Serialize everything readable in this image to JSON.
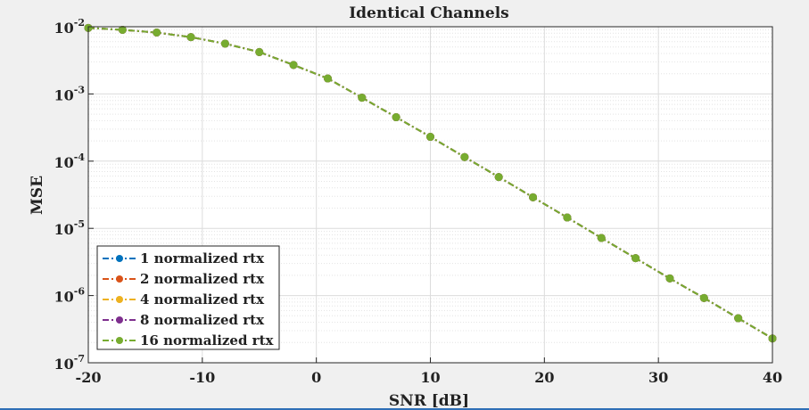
{
  "chart_data": {
    "type": "line",
    "title": "Identical Channels",
    "xlabel": "SNR [dB]",
    "ylabel": "MSE",
    "xlim": [
      -20,
      40
    ],
    "ylim": [
      1e-07,
      0.01
    ],
    "yscale": "log",
    "grid": true,
    "minor_grid": true,
    "legend_position": "bottom-left",
    "x_ticks": [
      -20,
      -10,
      0,
      10,
      20,
      30,
      40
    ],
    "x_tick_labels": [
      "-20",
      "-10",
      "0",
      "10",
      "20",
      "30",
      "40"
    ],
    "y_ticks": [
      {
        "value": 0.01,
        "base": "10",
        "exp": "-2"
      },
      {
        "value": 0.001,
        "base": "10",
        "exp": "-3"
      },
      {
        "value": 0.0001,
        "base": "10",
        "exp": "-4"
      },
      {
        "value": 1e-05,
        "base": "10",
        "exp": "-5"
      },
      {
        "value": 1e-06,
        "base": "10",
        "exp": "-6"
      },
      {
        "value": 1e-07,
        "base": "10",
        "exp": "-7"
      }
    ],
    "x": [
      -20,
      -17,
      -14,
      -11,
      -8,
      -5,
      -2,
      1,
      4,
      7,
      10,
      13,
      16,
      19,
      22,
      25,
      28,
      31,
      34,
      37,
      40
    ],
    "series": [
      {
        "name": "1 normalized rtx",
        "color": "#0072BD",
        "values": [
          0.0096,
          0.009,
          0.0082,
          0.007,
          0.0056,
          0.0042,
          0.0027,
          0.0017,
          0.00088,
          0.00045,
          0.00023,
          0.000115,
          5.8e-05,
          2.9e-05,
          1.45e-05,
          7.2e-06,
          3.6e-06,
          1.8e-06,
          9.2e-07,
          4.6e-07,
          2.3e-07
        ]
      },
      {
        "name": "2 normalized rtx",
        "color": "#D95319",
        "values": [
          0.0096,
          0.009,
          0.0082,
          0.007,
          0.0056,
          0.0042,
          0.0027,
          0.0017,
          0.00088,
          0.00045,
          0.00023,
          0.000115,
          5.8e-05,
          2.9e-05,
          1.45e-05,
          7.2e-06,
          3.6e-06,
          1.8e-06,
          9.2e-07,
          4.6e-07,
          2.3e-07
        ]
      },
      {
        "name": "4 normalized rtx",
        "color": "#EDB120",
        "values": [
          0.0096,
          0.009,
          0.0082,
          0.007,
          0.0056,
          0.0042,
          0.0027,
          0.0017,
          0.00088,
          0.00045,
          0.00023,
          0.000115,
          5.8e-05,
          2.9e-05,
          1.45e-05,
          7.2e-06,
          3.6e-06,
          1.8e-06,
          9.2e-07,
          4.6e-07,
          2.3e-07
        ]
      },
      {
        "name": "8 normalized rtx",
        "color": "#7E2F8E",
        "values": [
          0.0096,
          0.009,
          0.0082,
          0.007,
          0.0056,
          0.0042,
          0.0027,
          0.0017,
          0.00088,
          0.00045,
          0.00023,
          0.000115,
          5.8e-05,
          2.9e-05,
          1.45e-05,
          7.2e-06,
          3.6e-06,
          1.8e-06,
          9.2e-07,
          4.6e-07,
          2.3e-07
        ]
      },
      {
        "name": "16 normalized rtx",
        "color": "#77AC30",
        "values": [
          0.0096,
          0.009,
          0.0082,
          0.007,
          0.0056,
          0.0042,
          0.0027,
          0.0017,
          0.00088,
          0.00045,
          0.00023,
          0.000115,
          5.8e-05,
          2.9e-05,
          1.45e-05,
          7.2e-06,
          3.6e-06,
          1.8e-06,
          9.2e-07,
          4.6e-07,
          2.3e-07
        ]
      }
    ]
  }
}
